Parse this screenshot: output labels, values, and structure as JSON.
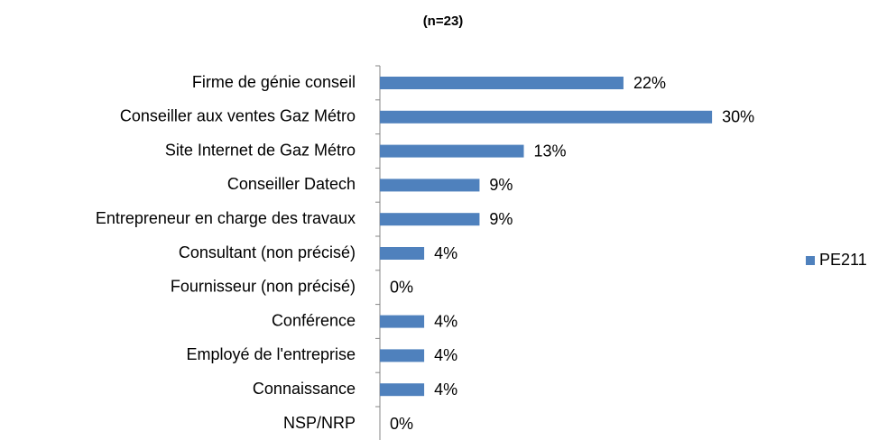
{
  "chart_data": {
    "type": "bar",
    "orientation": "horizontal",
    "title": "(n=23)",
    "categories": [
      "Firme de génie conseil",
      "Conseiller aux ventes Gaz Métro",
      "Site Internet de Gaz Métro",
      "Conseiller Datech",
      "Entrepreneur en charge des travaux",
      "Consultant (non précisé)",
      "Fournisseur (non précisé)",
      "Conférence",
      "Employé de l'entreprise",
      "Connaissance",
      "NSP/NRP"
    ],
    "series": [
      {
        "name": "PE211",
        "color": "#4f81bd",
        "values": [
          22,
          30,
          13,
          9,
          9,
          4,
          0,
          4,
          4,
          4,
          0
        ],
        "value_labels": [
          "22%",
          "30%",
          "13%",
          "9%",
          "9%",
          "4%",
          "0%",
          "4%",
          "4%",
          "4%",
          "0%"
        ]
      }
    ],
    "legend": "right"
  }
}
